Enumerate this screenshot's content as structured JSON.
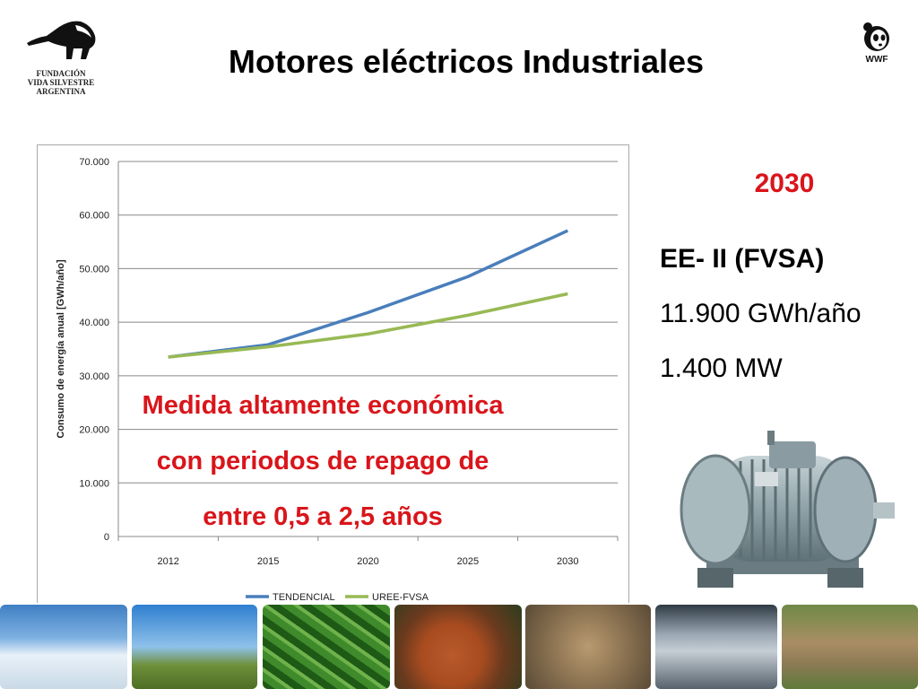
{
  "slide": {
    "title": "Motores eléctricos Industriales",
    "logo_left_org": "FUNDACIÓN\nVIDA SILVESTRE\nARGENTINA",
    "logo_right_text": "WWF"
  },
  "overlay_text": [
    "Medida altamente económica",
    "con periodos de repago de",
    "entre 0,5 a 2,5 años"
  ],
  "side_panel": {
    "year": "2030",
    "scenario": "EE- II (FVSA)",
    "energy": "11.900 GWh/año",
    "power": "1.400 MW"
  },
  "colors": {
    "accent_red": "#d9151b",
    "series_tendencial": "#4a7ebb",
    "series_uree": "#98b954",
    "gridline": "#888888"
  },
  "chart_data": {
    "type": "line",
    "title": "",
    "xlabel": "",
    "ylabel": "Consumo de energía anual [GWh/año]",
    "categories": [
      "2012",
      "2015",
      "2020",
      "2025",
      "2030"
    ],
    "ylim": [
      0,
      70000
    ],
    "yticks": [
      0,
      10000,
      20000,
      30000,
      40000,
      50000,
      60000,
      70000
    ],
    "ytick_labels": [
      "0",
      "10.000",
      "20.000",
      "30.000",
      "40.000",
      "50.000",
      "60.000",
      "70.000"
    ],
    "grid": true,
    "legend_position": "bottom",
    "series": [
      {
        "name": "TENDENCIAL",
        "values": [
          33500,
          35800,
          41800,
          48500,
          57100
        ]
      },
      {
        "name": "UREE-FVSA",
        "values": [
          33500,
          35400,
          37800,
          41300,
          45300
        ]
      }
    ]
  }
}
